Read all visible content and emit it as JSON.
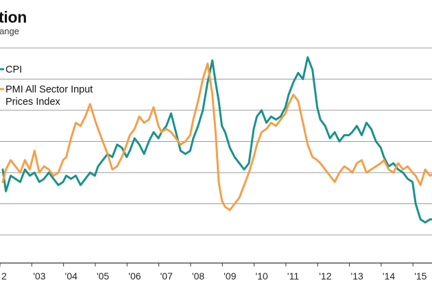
{
  "title": "tion",
  "subtitle": "ange",
  "chart_data": {
    "type": "line",
    "title": "tion",
    "subtitle": "ange",
    "x_tick_labels": [
      "2",
      "'03",
      "'04",
      "'05",
      "'06",
      "'07",
      "'08",
      "'09",
      "'10",
      "'11",
      "'12",
      "'13",
      "'14",
      "'15"
    ],
    "x_range": [
      2002.0,
      2015.6
    ],
    "y_gridlines": 7,
    "grid": "horizontal",
    "legend": {
      "placement": "top-left",
      "entries": [
        "CPI",
        "PMI All Sector Input\nPrices Index"
      ]
    },
    "series": [
      {
        "name": "CPI",
        "color": "#19928a",
        "x": [
          2002.0,
          2002.1,
          2002.25,
          2002.4,
          2002.55,
          2002.7,
          2002.85,
          2003.0,
          2003.15,
          2003.3,
          2003.45,
          2003.6,
          2003.75,
          2003.9,
          2004.0,
          2004.15,
          2004.3,
          2004.45,
          2004.6,
          2004.75,
          2004.9,
          2005.0,
          2005.15,
          2005.3,
          2005.45,
          2005.6,
          2005.75,
          2005.9,
          2006.0,
          2006.15,
          2006.3,
          2006.45,
          2006.6,
          2006.75,
          2006.9,
          2007.0,
          2007.15,
          2007.3,
          2007.45,
          2007.6,
          2007.75,
          2007.9,
          2008.0,
          2008.15,
          2008.3,
          2008.45,
          2008.6,
          2008.7,
          2008.8,
          2008.9,
          2009.0,
          2009.15,
          2009.3,
          2009.45,
          2009.6,
          2009.75,
          2009.9,
          2010.0,
          2010.15,
          2010.3,
          2010.45,
          2010.6,
          2010.75,
          2010.9,
          2011.0,
          2011.15,
          2011.3,
          2011.45,
          2011.6,
          2011.75,
          2011.9,
          2012.0,
          2012.15,
          2012.3,
          2012.45,
          2012.6,
          2012.75,
          2012.9,
          2013.0,
          2013.15,
          2013.3,
          2013.45,
          2013.6,
          2013.75,
          2013.9,
          2014.0,
          2014.15,
          2014.3,
          2014.45,
          2014.6,
          2014.75,
          2014.9,
          2015.0,
          2015.15,
          2015.3,
          2015.45,
          2015.6
        ],
        "y": [
          1.6,
          0.9,
          1.4,
          1.3,
          1.2,
          1.6,
          1.4,
          1.5,
          1.2,
          1.3,
          1.5,
          1.3,
          1.1,
          1.2,
          1.4,
          1.3,
          1.4,
          1.1,
          1.3,
          1.5,
          1.4,
          1.7,
          1.9,
          2.1,
          2.0,
          2.4,
          2.3,
          2.0,
          2.2,
          2.6,
          2.4,
          2.1,
          2.5,
          2.8,
          2.6,
          2.8,
          3.0,
          3.4,
          2.8,
          2.2,
          2.1,
          2.2,
          2.6,
          3.0,
          3.5,
          4.4,
          5.1,
          4.4,
          3.8,
          3.0,
          2.8,
          2.3,
          2.0,
          1.8,
          1.6,
          1.8,
          2.9,
          3.3,
          3.5,
          3.1,
          3.3,
          3.2,
          3.3,
          3.6,
          4.0,
          4.4,
          4.7,
          4.5,
          5.2,
          4.8,
          3.6,
          3.2,
          3.0,
          2.6,
          2.8,
          2.5,
          2.7,
          2.7,
          2.8,
          3.0,
          2.7,
          3.1,
          2.9,
          2.5,
          2.3,
          2.0,
          1.7,
          1.8,
          1.6,
          1.5,
          1.3,
          1.2,
          0.5,
          0.0,
          -0.1,
          0.0,
          0.0
        ],
        "note": "values in chart y units estimated from gridlines"
      },
      {
        "name": "PMI All Sector Input\nPrices Index",
        "color": "#f2a04a",
        "x": [
          2002.0,
          2002.1,
          2002.25,
          2002.4,
          2002.55,
          2002.7,
          2002.85,
          2003.0,
          2003.15,
          2003.3,
          2003.45,
          2003.6,
          2003.75,
          2003.9,
          2004.0,
          2004.15,
          2004.3,
          2004.45,
          2004.6,
          2004.75,
          2004.9,
          2005.0,
          2005.15,
          2005.3,
          2005.45,
          2005.6,
          2005.75,
          2005.9,
          2006.0,
          2006.15,
          2006.3,
          2006.45,
          2006.6,
          2006.75,
          2006.9,
          2007.0,
          2007.15,
          2007.3,
          2007.45,
          2007.6,
          2007.75,
          2007.9,
          2008.0,
          2008.15,
          2008.3,
          2008.45,
          2008.6,
          2008.7,
          2008.8,
          2008.9,
          2009.0,
          2009.15,
          2009.3,
          2009.45,
          2009.6,
          2009.75,
          2009.9,
          2010.0,
          2010.15,
          2010.3,
          2010.45,
          2010.6,
          2010.75,
          2010.9,
          2011.0,
          2011.15,
          2011.3,
          2011.45,
          2011.6,
          2011.75,
          2011.9,
          2012.0,
          2012.15,
          2012.3,
          2012.45,
          2012.6,
          2012.75,
          2012.9,
          2013.0,
          2013.15,
          2013.3,
          2013.45,
          2013.6,
          2013.75,
          2013.9,
          2014.0,
          2014.15,
          2014.3,
          2014.45,
          2014.6,
          2014.75,
          2014.9,
          2015.0,
          2015.15,
          2015.3,
          2015.45,
          2015.6
        ],
        "y": [
          1.2,
          1.6,
          1.9,
          1.7,
          1.5,
          1.9,
          1.6,
          2.2,
          1.5,
          1.7,
          1.6,
          1.4,
          1.5,
          1.9,
          2.0,
          2.6,
          3.1,
          3.0,
          3.3,
          3.7,
          3.2,
          2.9,
          2.5,
          2.1,
          1.6,
          1.7,
          2.0,
          2.4,
          2.7,
          2.9,
          3.3,
          3.1,
          3.2,
          3.6,
          3.0,
          2.8,
          2.9,
          2.8,
          2.6,
          2.4,
          2.5,
          2.7,
          3.2,
          3.8,
          4.5,
          5.0,
          4.0,
          2.8,
          1.2,
          0.6,
          0.4,
          0.3,
          0.5,
          0.7,
          1.1,
          1.5,
          2.0,
          2.4,
          2.8,
          2.9,
          3.1,
          3.0,
          3.2,
          3.4,
          3.7,
          4.0,
          3.8,
          3.1,
          2.4,
          2.0,
          1.9,
          1.8,
          1.6,
          1.4,
          1.2,
          1.5,
          1.7,
          1.6,
          1.5,
          1.8,
          1.9,
          1.5,
          1.6,
          1.7,
          1.8,
          1.9,
          1.6,
          1.5,
          1.8,
          1.6,
          1.7,
          1.5,
          1.4,
          1.1,
          1.6,
          1.4,
          1.5
        ],
        "note": "values in chart y units estimated from gridlines"
      }
    ]
  }
}
